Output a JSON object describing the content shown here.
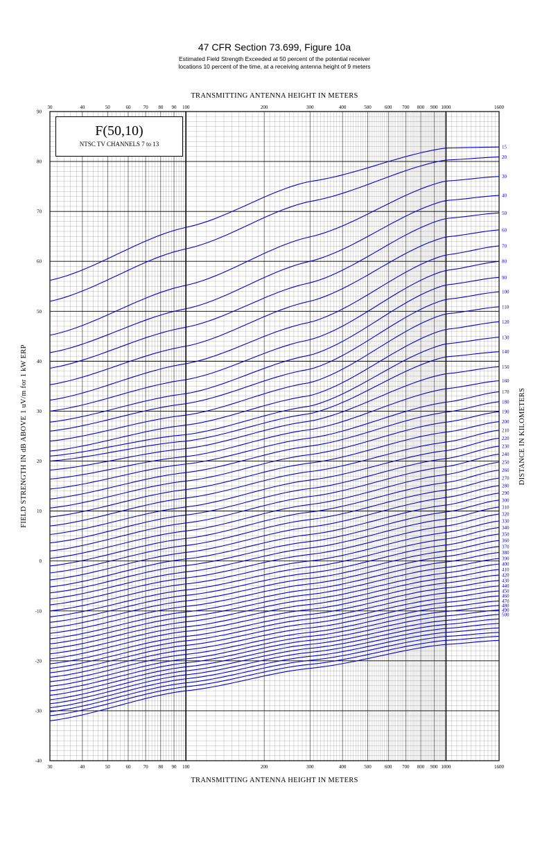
{
  "header": {
    "title": "47 CFR Section 73.699, Figure 10a",
    "subtitle_line1": "Estimated Field Strength Exceeded at 50 percent of the potential receiver",
    "subtitle_line2": "locations 10 percent of the time, at a receiving antenna height of 9 meters"
  },
  "legend_box": {
    "main": "F(50,10)",
    "sub": "NTSC TV CHANNELS 7 to 13"
  },
  "colors": {
    "curve": "#0000cc",
    "grid": "#000000"
  },
  "chart_data": {
    "type": "line",
    "title": "47 CFR Section 73.699, Figure 10a",
    "xlabel": "TRANSMITTING ANTENNA HEIGHT IN METERS",
    "ylabel": "FIELD STRENGTH IN dB ABOVE 1 uV/m for 1 kW ERP",
    "right_label": "DISTANCE IN KILOMETERS",
    "x_scale": "log",
    "xlim": [
      30,
      1600
    ],
    "ylim": [
      -40,
      90
    ],
    "x_ticks": [
      30,
      40,
      50,
      60,
      70,
      80,
      90,
      100,
      200,
      300,
      400,
      500,
      600,
      700,
      800,
      900,
      1000,
      1600
    ],
    "y_ticks": [
      90,
      80,
      70,
      60,
      50,
      40,
      30,
      20,
      10,
      0,
      -10,
      -20,
      -30,
      -40
    ],
    "grid": true,
    "x_knots": [
      30,
      100,
      300,
      1000,
      1600
    ],
    "series": [
      {
        "name": "15",
        "values": [
          56.2,
          66.8,
          76.0,
          82.7,
          82.9
        ]
      },
      {
        "name": "20",
        "values": [
          52.0,
          62.5,
          72.0,
          80.3,
          80.9
        ]
      },
      {
        "name": "30",
        "values": [
          45.2,
          55.2,
          64.9,
          76.1,
          77.0
        ]
      },
      {
        "name": "40",
        "values": [
          41.7,
          50.5,
          60.0,
          72.2,
          73.2
        ]
      },
      {
        "name": "50",
        "values": [
          38.6,
          46.8,
          55.7,
          68.6,
          69.7
        ]
      },
      {
        "name": "60",
        "values": [
          35.3,
          43.0,
          52.0,
          64.9,
          66.3
        ]
      },
      {
        "name": "70",
        "values": [
          32.2,
          39.5,
          47.8,
          61.3,
          63.1
        ]
      },
      {
        "name": "80",
        "values": [
          30.0,
          36.3,
          44.3,
          58.2,
          60.0
        ]
      },
      {
        "name": "90",
        "values": [
          27.8,
          33.5,
          41.2,
          55.3,
          56.8
        ]
      },
      {
        "name": "100",
        "values": [
          26.0,
          31.5,
          38.4,
          52.4,
          53.9
        ]
      },
      {
        "name": "110",
        "values": [
          24.0,
          29.2,
          35.7,
          49.5,
          50.9
        ]
      },
      {
        "name": "120",
        "values": [
          22.0,
          27.2,
          33.1,
          46.4,
          47.9
        ]
      },
      {
        "name": "130",
        "values": [
          21.0,
          25.3,
          31.0,
          43.5,
          44.8
        ]
      },
      {
        "name": "140",
        "values": [
          20.0,
          24.0,
          29.5,
          40.9,
          41.9
        ]
      },
      {
        "name": "150",
        "values": [
          18.2,
          22.5,
          28.0,
          37.5,
          38.9
        ]
      },
      {
        "name": "160",
        "values": [
          16.4,
          20.9,
          26.3,
          34.5,
          36.1
        ]
      },
      {
        "name": "170",
        "values": [
          14.4,
          19.4,
          24.6,
          31.8,
          33.9
        ]
      },
      {
        "name": "180",
        "values": [
          12.4,
          17.7,
          23.0,
          29.8,
          31.9
        ]
      },
      {
        "name": "190",
        "values": [
          10.6,
          16.0,
          21.3,
          27.8,
          29.9
        ]
      },
      {
        "name": "200",
        "values": [
          8.8,
          14.3,
          19.6,
          25.8,
          27.9
        ]
      },
      {
        "name": "210",
        "values": [
          7.0,
          12.6,
          17.9,
          23.8,
          26.2
        ]
      },
      {
        "name": "220",
        "values": [
          5.3,
          10.8,
          16.2,
          22.1,
          24.6
        ]
      },
      {
        "name": "230",
        "values": [
          3.6,
          9.2,
          14.5,
          20.5,
          23.0
        ]
      },
      {
        "name": "240",
        "values": [
          2.0,
          7.6,
          12.9,
          18.9,
          21.4
        ]
      },
      {
        "name": "250",
        "values": [
          0.5,
          6.0,
          11.3,
          17.3,
          19.8
        ]
      },
      {
        "name": "260",
        "values": [
          -1.0,
          4.5,
          9.8,
          15.7,
          18.2
        ]
      },
      {
        "name": "270",
        "values": [
          -2.4,
          3.1,
          8.3,
          14.2,
          16.6
        ]
      },
      {
        "name": "280",
        "values": [
          -3.8,
          1.7,
          6.8,
          12.7,
          15.1
        ]
      },
      {
        "name": "290",
        "values": [
          -5.2,
          0.4,
          5.3,
          11.2,
          13.6
        ]
      },
      {
        "name": "300",
        "values": [
          -6.4,
          -0.9,
          3.9,
          9.8,
          12.2
        ]
      },
      {
        "name": "310",
        "values": [
          -7.6,
          -2.2,
          2.6,
          8.4,
          10.8
        ]
      },
      {
        "name": "320",
        "values": [
          -8.8,
          -3.4,
          1.3,
          7.0,
          9.4
        ]
      },
      {
        "name": "330",
        "values": [
          -10.0,
          -4.6,
          0.0,
          5.7,
          8.0
        ]
      },
      {
        "name": "340",
        "values": [
          -11.2,
          -5.8,
          -1.2,
          4.4,
          6.7
        ]
      },
      {
        "name": "350",
        "values": [
          -12.3,
          -6.9,
          -2.4,
          3.2,
          5.4
        ]
      },
      {
        "name": "360",
        "values": [
          -13.4,
          -8.0,
          -3.5,
          2.0,
          4.1
        ]
      },
      {
        "name": "370",
        "values": [
          -14.5,
          -9.1,
          -4.6,
          0.9,
          2.9
        ]
      },
      {
        "name": "380",
        "values": [
          -15.6,
          -10.2,
          -5.7,
          -0.2,
          1.7
        ]
      },
      {
        "name": "390",
        "values": [
          -16.6,
          -11.2,
          -6.7,
          -1.3,
          0.5
        ]
      },
      {
        "name": "400",
        "values": [
          -17.6,
          -12.2,
          -7.7,
          -2.4,
          -0.6
        ]
      },
      {
        "name": "410",
        "values": [
          -18.6,
          -13.2,
          -8.7,
          -3.4,
          -1.7
        ]
      },
      {
        "name": "420",
        "values": [
          -19.6,
          -14.1,
          -9.7,
          -4.4,
          -2.8
        ]
      },
      {
        "name": "430",
        "values": [
          -20.6,
          -15.1,
          -10.7,
          -5.4,
          -3.9
        ]
      },
      {
        "name": "440",
        "values": [
          -21.5,
          -16.0,
          -11.6,
          -6.4,
          -5.0
        ]
      },
      {
        "name": "450",
        "values": [
          -22.4,
          -16.9,
          -12.5,
          -7.4,
          -6.0
        ]
      },
      {
        "name": "460",
        "values": [
          -23.3,
          -17.8,
          -13.4,
          -8.3,
          -7.0
        ]
      },
      {
        "name": "470",
        "values": [
          -24.2,
          -18.7,
          -14.3,
          -9.2,
          -8.0
        ]
      },
      {
        "name": "480",
        "values": [
          -25.1,
          -19.6,
          -15.1,
          -10.1,
          -8.9
        ]
      },
      {
        "name": "490",
        "values": [
          -26.0,
          -20.4,
          -15.9,
          -11.0,
          -9.8
        ]
      },
      {
        "name": "500",
        "values": [
          -26.9,
          -21.2,
          -16.7,
          -11.9,
          -10.7
        ]
      },
      {
        "name": "",
        "values": [
          -27.8,
          -22.0,
          -17.5,
          -12.7,
          -11.6
        ]
      },
      {
        "name": "",
        "values": [
          -28.6,
          -22.8,
          -18.3,
          -13.5,
          -12.5
        ]
      },
      {
        "name": "",
        "values": [
          -29.4,
          -23.6,
          -19.1,
          -14.3,
          -13.4
        ]
      },
      {
        "name": "",
        "values": [
          -30.2,
          -24.4,
          -19.9,
          -15.1,
          -14.3
        ]
      },
      {
        "name": "",
        "values": [
          -31.0,
          -25.2,
          -20.7,
          -15.9,
          -15.1
        ]
      },
      {
        "name": "",
        "values": [
          -32.0,
          -26.0,
          -21.5,
          -16.7,
          -15.9
        ]
      }
    ]
  }
}
